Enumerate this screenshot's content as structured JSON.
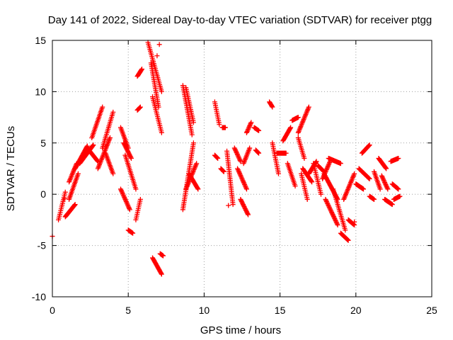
{
  "chart_data": {
    "type": "scatter",
    "title": "Day 141 of 2022, Sidereal Day-to-day VTEC variation (SDTVAR) for receiver ptgg",
    "xlabel": "GPS time / hours",
    "ylabel": "SDTVAR / TECUs",
    "xlim": [
      0,
      25
    ],
    "ylim": [
      -10,
      15
    ],
    "xticks": [
      0,
      5,
      10,
      15,
      20,
      25
    ],
    "yticks": [
      -10,
      -5,
      0,
      5,
      10,
      15
    ],
    "grid": true,
    "marker": "+",
    "color": "#ff0000",
    "segments": [
      {
        "x": [
          0.4,
          0.85
        ],
        "y": [
          -2.5,
          0.2
        ]
      },
      {
        "x": [
          0.85,
          1.5
        ],
        "y": [
          -2.2,
          -1.0
        ]
      },
      {
        "x": [
          1.1,
          1.6
        ],
        "y": [
          1.2,
          3.0
        ]
      },
      {
        "x": [
          1.1,
          1.7
        ],
        "y": [
          -0.5,
          2.0
        ]
      },
      {
        "x": [
          1.5,
          2.3
        ],
        "y": [
          2.5,
          4.7
        ]
      },
      {
        "x": [
          1.8,
          2.7
        ],
        "y": [
          3.0,
          4.8
        ]
      },
      {
        "x": [
          2.3,
          3.0
        ],
        "y": [
          4.5,
          3.2
        ]
      },
      {
        "x": [
          2.6,
          3.3
        ],
        "y": [
          5.5,
          8.5
        ]
      },
      {
        "x": [
          3.0,
          3.8
        ],
        "y": [
          2.5,
          5.5
        ]
      },
      {
        "x": [
          3.3,
          4.0
        ],
        "y": [
          4.5,
          8.0
        ]
      },
      {
        "x": [
          3.5,
          4.0
        ],
        "y": [
          4.0,
          2.0
        ]
      },
      {
        "x": [
          4.5,
          5.0
        ],
        "y": [
          6.5,
          4.5
        ]
      },
      {
        "x": [
          4.5,
          5.1
        ],
        "y": [
          0.5,
          -1.5
        ]
      },
      {
        "x": [
          4.7,
          5.2
        ],
        "y": [
          5.0,
          3.5
        ]
      },
      {
        "x": [
          4.8,
          5.5
        ],
        "y": [
          3.8,
          0.5
        ]
      },
      {
        "x": [
          5.0,
          5.3
        ],
        "y": [
          -3.5,
          -3.8
        ]
      },
      {
        "x": [
          5.5,
          5.8
        ],
        "y": [
          -2.5,
          -0.5
        ]
      },
      {
        "x": [
          5.6,
          5.9
        ],
        "y": [
          11.5,
          12.2
        ]
      },
      {
        "x": [
          5.6,
          5.8
        ],
        "y": [
          8.2,
          8.5
        ]
      },
      {
        "x": [
          6.3,
          7.2
        ],
        "y": [
          14.8,
          10.0
        ]
      },
      {
        "x": [
          6.5,
          7.0
        ],
        "y": [
          12.8,
          8.5
        ]
      },
      {
        "x": [
          6.6,
          7.2
        ],
        "y": [
          9.5,
          6.0
        ]
      },
      {
        "x": [
          6.6,
          7.2
        ],
        "y": [
          -6.2,
          -7.8
        ]
      },
      {
        "x": [
          7.1,
          7.3
        ],
        "y": [
          -5.8,
          -6.0
        ]
      },
      {
        "x": [
          8.6,
          9.2
        ],
        "y": [
          10.6,
          5.8
        ]
      },
      {
        "x": [
          8.8,
          9.3
        ],
        "y": [
          10.4,
          7.0
        ]
      },
      {
        "x": [
          8.6,
          9.3
        ],
        "y": [
          -1.5,
          5.0
        ]
      },
      {
        "x": [
          8.8,
          9.5
        ],
        "y": [
          0.5,
          3.0
        ]
      },
      {
        "x": [
          9.0,
          9.6
        ],
        "y": [
          2.0,
          0.5
        ]
      },
      {
        "x": [
          10.7,
          11.0
        ],
        "y": [
          9.0,
          6.8
        ]
      },
      {
        "x": [
          10.7,
          10.9
        ],
        "y": [
          3.8,
          3.5
        ]
      },
      {
        "x": [
          11.1,
          11.3
        ],
        "y": [
          2.5,
          2.2
        ]
      },
      {
        "x": [
          11.2,
          11.4
        ],
        "y": [
          6.5,
          6.5
        ]
      },
      {
        "x": [
          11.5,
          11.9
        ],
        "y": [
          4.2,
          -1.0
        ]
      },
      {
        "x": [
          12.0,
          12.4
        ],
        "y": [
          4.5,
          3.2
        ]
      },
      {
        "x": [
          12.2,
          12.8
        ],
        "y": [
          2.5,
          0.5
        ]
      },
      {
        "x": [
          12.4,
          12.9
        ],
        "y": [
          -0.5,
          -2.0
        ]
      },
      {
        "x": [
          12.6,
          13.0
        ],
        "y": [
          3.0,
          4.5
        ]
      },
      {
        "x": [
          12.8,
          13.1
        ],
        "y": [
          6.0,
          7.0
        ]
      },
      {
        "x": [
          13.3,
          13.6
        ],
        "y": [
          6.5,
          6.2
        ]
      },
      {
        "x": [
          13.4,
          13.6
        ],
        "y": [
          4.3,
          4.0
        ]
      },
      {
        "x": [
          14.3,
          14.5
        ],
        "y": [
          9.0,
          8.5
        ]
      },
      {
        "x": [
          14.5,
          14.9
        ],
        "y": [
          5.0,
          2.0
        ]
      },
      {
        "x": [
          14.8,
          15.4
        ],
        "y": [
          4.0,
          4.0
        ]
      },
      {
        "x": [
          15.2,
          15.7
        ],
        "y": [
          5.2,
          6.5
        ]
      },
      {
        "x": [
          15.5,
          16.0
        ],
        "y": [
          3.0,
          0.8
        ]
      },
      {
        "x": [
          15.8,
          16.2
        ],
        "y": [
          7.2,
          7.5
        ]
      },
      {
        "x": [
          16.2,
          16.6
        ],
        "y": [
          5.5,
          3.5
        ]
      },
      {
        "x": [
          16.2,
          16.9
        ],
        "y": [
          6.0,
          8.5
        ]
      },
      {
        "x": [
          16.4,
          16.8
        ],
        "y": [
          2.0,
          -0.5
        ]
      },
      {
        "x": [
          16.5,
          17.1
        ],
        "y": [
          2.5,
          1.2
        ]
      },
      {
        "x": [
          16.9,
          17.4
        ],
        "y": [
          2.0,
          3.2
        ]
      },
      {
        "x": [
          17.2,
          17.7
        ],
        "y": [
          3.0,
          0.0
        ]
      },
      {
        "x": [
          17.5,
          17.9
        ],
        "y": [
          2.8,
          2.2
        ]
      },
      {
        "x": [
          17.8,
          18.3
        ],
        "y": [
          1.5,
          3.2
        ]
      },
      {
        "x": [
          17.9,
          18.8
        ],
        "y": [
          2.0,
          -0.5
        ]
      },
      {
        "x": [
          18.0,
          18.8
        ],
        "y": [
          -0.5,
          -3.0
        ]
      },
      {
        "x": [
          18.2,
          19.0
        ],
        "y": [
          3.5,
          3.0
        ]
      },
      {
        "x": [
          18.5,
          19.3
        ],
        "y": [
          0.5,
          -3.5
        ]
      },
      {
        "x": [
          19.0,
          19.5
        ],
        "y": [
          -3.8,
          -4.5
        ]
      },
      {
        "x": [
          19.2,
          19.9
        ],
        "y": [
          -0.5,
          2.0
        ]
      },
      {
        "x": [
          19.5,
          19.9
        ],
        "y": [
          -2.5,
          -3.0
        ]
      },
      {
        "x": [
          20.0,
          20.5
        ],
        "y": [
          1.0,
          0.5
        ]
      },
      {
        "x": [
          20.2,
          20.9
        ],
        "y": [
          2.5,
          1.5
        ]
      },
      {
        "x": [
          20.4,
          20.9
        ],
        "y": [
          4.0,
          4.8
        ]
      },
      {
        "x": [
          20.9,
          21.2
        ],
        "y": [
          -0.2,
          -0.5
        ]
      },
      {
        "x": [
          21.2,
          21.6
        ],
        "y": [
          2.2,
          0.5
        ]
      },
      {
        "x": [
          21.5,
          22.0
        ],
        "y": [
          3.5,
          2.5
        ]
      },
      {
        "x": [
          21.7,
          22.1
        ],
        "y": [
          1.8,
          0.5
        ]
      },
      {
        "x": [
          21.9,
          22.4
        ],
        "y": [
          -0.5,
          -1.0
        ]
      },
      {
        "x": [
          22.3,
          22.8
        ],
        "y": [
          3.2,
          3.5
        ]
      },
      {
        "x": [
          22.4,
          22.8
        ],
        "y": [
          1.0,
          0.5
        ]
      },
      {
        "x": [
          22.5,
          22.9
        ],
        "y": [
          -0.5,
          -0.2
        ]
      }
    ],
    "points": [
      {
        "x": 0.0,
        "y": -4.1
      },
      {
        "x": 0.8,
        "y": -0.4
      },
      {
        "x": 6.9,
        "y": 13.5
      },
      {
        "x": 7.05,
        "y": 14.6
      },
      {
        "x": 11.6,
        "y": -1.1
      },
      {
        "x": 19.9,
        "y": -2.7
      }
    ]
  }
}
